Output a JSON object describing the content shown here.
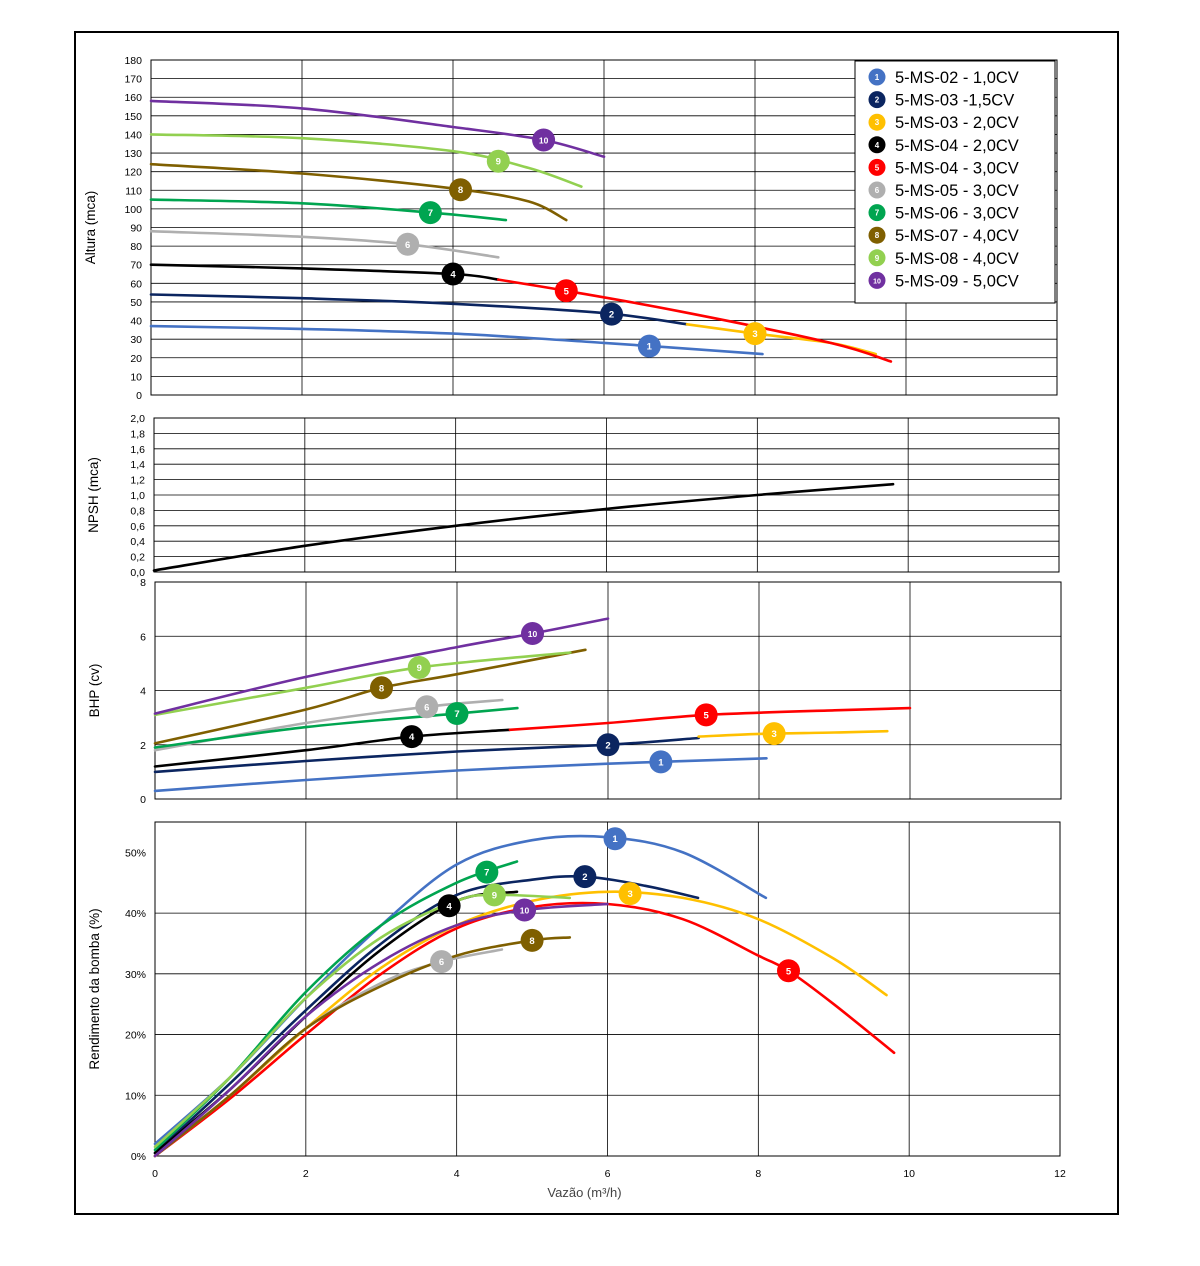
{
  "chart_data": [
    {
      "id": "altura",
      "type": "line",
      "ylabel": "Altura (mca)",
      "xlim": [
        0,
        12
      ],
      "ylim": [
        0,
        180
      ],
      "yticks": [
        0,
        10,
        20,
        30,
        40,
        50,
        60,
        70,
        80,
        90,
        100,
        110,
        120,
        130,
        140,
        150,
        160,
        170,
        180
      ],
      "ytick_labels": [
        "0",
        "10",
        "20",
        "30",
        "40",
        "50",
        "60",
        "70",
        "80",
        "90",
        "100",
        "110",
        "120",
        "130",
        "140",
        "150",
        "160",
        "170",
        "180"
      ],
      "grid": true,
      "legend_position": "top-right",
      "series": [
        {
          "key": "1",
          "name": "5-MS-02 - 1,0CV",
          "color": "#4472C4",
          "marker_label": "1",
          "marker_x": 6.6,
          "points": [
            [
              0,
              37
            ],
            [
              2,
              35.5
            ],
            [
              4,
              33
            ],
            [
              6,
              28
            ],
            [
              8.1,
              22
            ]
          ]
        },
        {
          "key": "2",
          "name": "5-MS-03 -1,5CV",
          "color": "#0B2560",
          "marker_label": "2",
          "marker_x": 6.1,
          "points": [
            [
              0,
              54
            ],
            [
              2,
              52
            ],
            [
              4,
              49
            ],
            [
              6,
              44
            ],
            [
              7.1,
              38
            ]
          ]
        },
        {
          "key": "3",
          "name": "5-MS-03 - 2,0CV",
          "color": "#FFC000",
          "marker_label": "3",
          "marker_x": 8.0,
          "points": [
            [
              7.1,
              38
            ],
            [
              8,
              33
            ],
            [
              9,
              28
            ],
            [
              9.6,
              22
            ]
          ]
        },
        {
          "key": "4",
          "name": "5-MS-04 - 2,0CV",
          "color": "#000000",
          "marker_label": "4",
          "marker_x": 4.0,
          "points": [
            [
              0,
              70
            ],
            [
              2,
              68
            ],
            [
              4,
              65
            ],
            [
              4.6,
              62
            ]
          ]
        },
        {
          "key": "5",
          "name": "5-MS-04 - 3,0CV",
          "color": "#FF0000",
          "marker_label": "5",
          "marker_x": 5.5,
          "points": [
            [
              4.6,
              62
            ],
            [
              5.5,
              56
            ],
            [
              7,
              45
            ],
            [
              9,
              28
            ],
            [
              9.8,
              18
            ]
          ]
        },
        {
          "key": "6",
          "name": "5-MS-05 - 3,0CV",
          "color": "#AFAFAF",
          "marker_label": "6",
          "marker_x": 3.4,
          "points": [
            [
              0,
              88
            ],
            [
              2,
              85
            ],
            [
              3.4,
              81
            ],
            [
              4.6,
              74
            ]
          ]
        },
        {
          "key": "7",
          "name": "5-MS-06 - 3,0CV",
          "color": "#00A550",
          "marker_label": "7",
          "marker_x": 3.7,
          "points": [
            [
              0,
              105
            ],
            [
              2,
              103
            ],
            [
              3.7,
              98
            ],
            [
              4.7,
              94
            ]
          ]
        },
        {
          "key": "8",
          "name": "5-MS-07 - 4,0CV",
          "color": "#7F5F00",
          "marker_label": "8",
          "marker_x": 4.1,
          "points": [
            [
              0,
              124
            ],
            [
              2,
              119
            ],
            [
              4,
              111
            ],
            [
              5,
              104
            ],
            [
              5.5,
              94
            ]
          ]
        },
        {
          "key": "9",
          "name": "5-MS-08 - 4,0CV",
          "color": "#92D050",
          "marker_label": "9",
          "marker_x": 4.6,
          "points": [
            [
              0,
              140
            ],
            [
              2,
              138
            ],
            [
              4,
              131
            ],
            [
              5,
              122
            ],
            [
              5.7,
              112
            ]
          ]
        },
        {
          "key": "10",
          "name": "5-MS-09 - 5,0CV",
          "color": "#7030A0",
          "marker_label": "10",
          "marker_x": 5.2,
          "points": [
            [
              0,
              158
            ],
            [
              2,
              154
            ],
            [
              4,
              144
            ],
            [
              5.2,
              137
            ],
            [
              6,
              128
            ]
          ]
        }
      ]
    },
    {
      "id": "npsh",
      "type": "line",
      "ylabel": "NPSH (mca)",
      "xlim": [
        0,
        12
      ],
      "ylim": [
        0,
        2
      ],
      "yticks": [
        0,
        0.2,
        0.4,
        0.6,
        0.8,
        1.0,
        1.2,
        1.4,
        1.6,
        1.8,
        2.0
      ],
      "ytick_labels": [
        "0,0",
        "0,2",
        "0,4",
        "0,6",
        "0,8",
        "1,0",
        "1,2",
        "1,4",
        "1,6",
        "1,8",
        "2,0"
      ],
      "grid": true,
      "series": [
        {
          "key": "npsh",
          "color": "#000000",
          "points": [
            [
              0,
              0.02
            ],
            [
              2,
              0.34
            ],
            [
              4,
              0.6
            ],
            [
              6,
              0.82
            ],
            [
              8,
              1.0
            ],
            [
              9.8,
              1.14
            ]
          ]
        }
      ]
    },
    {
      "id": "bhp",
      "type": "line",
      "ylabel": "BHP (cv)",
      "xlim": [
        0,
        12
      ],
      "ylim": [
        0,
        8
      ],
      "yticks": [
        0,
        2,
        4,
        6,
        8
      ],
      "ytick_labels": [
        "0",
        "2",
        "4",
        "6",
        "8"
      ],
      "grid": true,
      "series": [
        {
          "key": "1",
          "color": "#4472C4",
          "marker_label": "1",
          "marker_x": 6.7,
          "points": [
            [
              0,
              0.3
            ],
            [
              2,
              0.7
            ],
            [
              4,
              1.05
            ],
            [
              6,
              1.3
            ],
            [
              8.1,
              1.5
            ]
          ]
        },
        {
          "key": "2",
          "color": "#0B2560",
          "marker_label": "2",
          "marker_x": 6.0,
          "points": [
            [
              0,
              1.0
            ],
            [
              2,
              1.4
            ],
            [
              4,
              1.75
            ],
            [
              6,
              2.0
            ],
            [
              7.2,
              2.25
            ]
          ]
        },
        {
          "key": "3",
          "color": "#FFC000",
          "marker_label": "3",
          "marker_x": 8.2,
          "points": [
            [
              7.2,
              2.3
            ],
            [
              8,
              2.4
            ],
            [
              9,
              2.45
            ],
            [
              9.7,
              2.5
            ]
          ]
        },
        {
          "key": "4",
          "color": "#000000",
          "marker_label": "4",
          "marker_x": 3.4,
          "points": [
            [
              0,
              1.2
            ],
            [
              2,
              1.8
            ],
            [
              3.4,
              2.3
            ],
            [
              4.7,
              2.55
            ]
          ]
        },
        {
          "key": "5",
          "color": "#FF0000",
          "marker_label": "5",
          "marker_x": 7.3,
          "points": [
            [
              4.7,
              2.55
            ],
            [
              6,
              2.8
            ],
            [
              7.3,
              3.1
            ],
            [
              9,
              3.27
            ],
            [
              10,
              3.35
            ]
          ]
        },
        {
          "key": "6",
          "color": "#AFAFAF",
          "marker_label": "6",
          "marker_x": 3.6,
          "points": [
            [
              0,
              1.8
            ],
            [
              2,
              2.8
            ],
            [
              3.6,
              3.4
            ],
            [
              4.6,
              3.65
            ]
          ]
        },
        {
          "key": "7",
          "color": "#00A550",
          "marker_label": "7",
          "marker_x": 4.0,
          "points": [
            [
              0,
              1.9
            ],
            [
              2,
              2.65
            ],
            [
              4,
              3.15
            ],
            [
              4.8,
              3.35
            ]
          ]
        },
        {
          "key": "8",
          "color": "#7F5F00",
          "marker_label": "8",
          "marker_x": 3.0,
          "points": [
            [
              0,
              2.05
            ],
            [
              2,
              3.3
            ],
            [
              3,
              4.1
            ],
            [
              4,
              4.6
            ],
            [
              5.7,
              5.5
            ]
          ]
        },
        {
          "key": "9",
          "color": "#92D050",
          "marker_label": "9",
          "marker_x": 3.5,
          "points": [
            [
              0,
              3.1
            ],
            [
              2,
              4.1
            ],
            [
              3.5,
              4.85
            ],
            [
              5.5,
              5.4
            ]
          ]
        },
        {
          "key": "10",
          "color": "#7030A0",
          "marker_label": "10",
          "marker_x": 5.0,
          "points": [
            [
              0,
              3.15
            ],
            [
              2,
              4.5
            ],
            [
              4,
              5.6
            ],
            [
              5,
              6.1
            ],
            [
              6,
              6.65
            ]
          ]
        }
      ]
    },
    {
      "id": "rendimento",
      "type": "line",
      "xlabel": "Vazão (m³/h)",
      "ylabel": "Rendimento da bomba (%)",
      "xlim": [
        0,
        12
      ],
      "ylim": [
        0,
        55
      ],
      "xticks": [
        0,
        2,
        4,
        6,
        8,
        10,
        12
      ],
      "xtick_labels": [
        "0",
        "2",
        "4",
        "6",
        "8",
        "10",
        "12"
      ],
      "yticks": [
        0,
        10,
        20,
        30,
        40,
        50
      ],
      "ytick_labels": [
        "0%",
        "10%",
        "20%",
        "30%",
        "40%",
        "50%"
      ],
      "grid": true,
      "series": [
        {
          "key": "1",
          "color": "#4472C4",
          "marker_label": "1",
          "marker_x": 6.1,
          "points": [
            [
              0,
              2
            ],
            [
              1,
              13
            ],
            [
              2,
              26
            ],
            [
              3,
              38
            ],
            [
              4,
              48
            ],
            [
              5,
              52
            ],
            [
              6,
              52.5
            ],
            [
              7,
              50
            ],
            [
              8.1,
              42.5
            ]
          ]
        },
        {
          "key": "2",
          "color": "#0B2560",
          "marker_label": "2",
          "marker_x": 5.7,
          "points": [
            [
              0,
              0.5
            ],
            [
              1,
              12
            ],
            [
              2,
              24
            ],
            [
              3,
              35
            ],
            [
              4,
              43
            ],
            [
              5,
              45.5
            ],
            [
              5.7,
              46
            ],
            [
              6.5,
              44.5
            ],
            [
              7.2,
              42.5
            ]
          ]
        },
        {
          "key": "3",
          "color": "#FFC000",
          "marker_label": "3",
          "marker_x": 6.3,
          "points": [
            [
              0,
              0
            ],
            [
              1,
              10
            ],
            [
              2,
              21
            ],
            [
              3,
              31
            ],
            [
              4,
              38
            ],
            [
              5,
              42
            ],
            [
              6,
              43.5
            ],
            [
              7,
              42.5
            ],
            [
              8,
              39
            ],
            [
              9,
              32.5
            ],
            [
              9.7,
              26.5
            ]
          ]
        },
        {
          "key": "4",
          "color": "#000000",
          "marker_label": "4",
          "marker_x": 3.9,
          "points": [
            [
              0,
              0.5
            ],
            [
              1,
              11
            ],
            [
              2,
              23
            ],
            [
              3,
              34
            ],
            [
              4,
              42
            ],
            [
              4.8,
              43.5
            ]
          ]
        },
        {
          "key": "5",
          "color": "#FF0000",
          "marker_label": "5",
          "marker_x": 8.4,
          "points": [
            [
              0,
              0
            ],
            [
              1,
              9.5
            ],
            [
              2,
              20
            ],
            [
              3,
              30
            ],
            [
              4,
              37.5
            ],
            [
              5,
              41
            ],
            [
              6,
              41.5
            ],
            [
              7,
              39
            ],
            [
              8,
              33
            ],
            [
              8.4,
              30.5
            ],
            [
              9,
              25
            ],
            [
              9.8,
              17
            ]
          ]
        },
        {
          "key": "6",
          "color": "#AFAFAF",
          "marker_label": "6",
          "marker_x": 3.8,
          "points": [
            [
              0,
              0
            ],
            [
              1,
              10
            ],
            [
              2,
              21
            ],
            [
              3,
              28.5
            ],
            [
              3.8,
              32
            ],
            [
              4.6,
              34
            ]
          ]
        },
        {
          "key": "7",
          "color": "#00A550",
          "marker_label": "7",
          "marker_x": 4.4,
          "points": [
            [
              0,
              1
            ],
            [
              1,
              13
            ],
            [
              2,
              27
            ],
            [
              3,
              38
            ],
            [
              4,
              45
            ],
            [
              4.8,
              48.5
            ]
          ]
        },
        {
          "key": "8",
          "color": "#7F5F00",
          "marker_label": "8",
          "marker_x": 5.0,
          "points": [
            [
              0,
              0
            ],
            [
              1,
              10
            ],
            [
              2,
              21
            ],
            [
              3,
              28
            ],
            [
              4,
              33
            ],
            [
              5,
              35.5
            ],
            [
              5.5,
              36
            ]
          ]
        },
        {
          "key": "9",
          "color": "#92D050",
          "marker_label": "9",
          "marker_x": 4.5,
          "points": [
            [
              0,
              1.5
            ],
            [
              1,
              13
            ],
            [
              2,
              26
            ],
            [
              3,
              36
            ],
            [
              4,
              42
            ],
            [
              4.5,
              43
            ],
            [
              5.5,
              42.5
            ]
          ]
        },
        {
          "key": "10",
          "color": "#7030A0",
          "marker_label": "10",
          "marker_x": 4.9,
          "points": [
            [
              0,
              0
            ],
            [
              1,
              11
            ],
            [
              2,
              23
            ],
            [
              3,
              32
            ],
            [
              4,
              38
            ],
            [
              4.9,
              40.5
            ],
            [
              6,
              41.5
            ]
          ]
        }
      ]
    }
  ]
}
